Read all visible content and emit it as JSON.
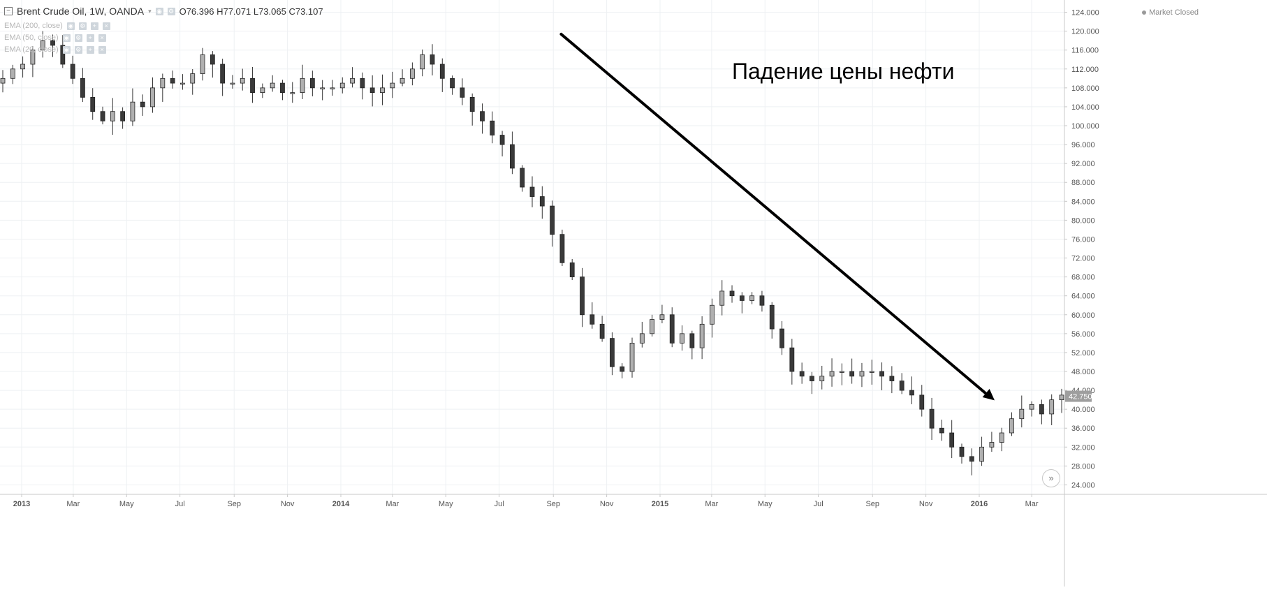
{
  "legend": {
    "symbol": "Brent Crude Oil, 1W, OANDA",
    "ohlc": "O76.396 H77.071 L73.065 C73.107",
    "indicators": [
      "EMA (200, close)",
      "EMA (50, close)",
      "EMA (20, close)"
    ]
  },
  "status": "Market Closed",
  "annotation": "Падение цены нефти",
  "scroll_icon": "double-chevron-right-icon",
  "colors": {
    "up": "#b0b0b0",
    "down": "#3a3a3a",
    "grid": "#eef0f3",
    "arrow": "#000000"
  },
  "chart_data": {
    "type": "candlestick",
    "title": "Brent Crude Oil, 1W, OANDA",
    "ylim": [
      22,
      126
    ],
    "y_ticks": [
      "24.000",
      "28.000",
      "32.000",
      "36.000",
      "40.000",
      "44.000",
      "48.000",
      "52.000",
      "56.000",
      "60.000",
      "64.000",
      "68.000",
      "72.000",
      "76.000",
      "80.000",
      "84.000",
      "88.000",
      "92.000",
      "96.000",
      "100.000",
      "104.000",
      "108.000",
      "112.000",
      "116.000",
      "120.000",
      "124.000"
    ],
    "last_price": "42.750",
    "x_labels": [
      {
        "date": "2013-01",
        "label": "2013"
      },
      {
        "date": "2013-03",
        "label": "Mar"
      },
      {
        "date": "2013-05",
        "label": "May"
      },
      {
        "date": "2013-07",
        "label": "Jul"
      },
      {
        "date": "2013-09",
        "label": "Sep"
      },
      {
        "date": "2013-11",
        "label": "Nov"
      },
      {
        "date": "2014-01",
        "label": "2014"
      },
      {
        "date": "2014-03",
        "label": "Mar"
      },
      {
        "date": "2014-05",
        "label": "May"
      },
      {
        "date": "2014-07",
        "label": "Jul"
      },
      {
        "date": "2014-09",
        "label": "Sep"
      },
      {
        "date": "2014-11",
        "label": "Nov"
      },
      {
        "date": "2015-01",
        "label": "2015"
      },
      {
        "date": "2015-03",
        "label": "Mar"
      },
      {
        "date": "2015-05",
        "label": "May"
      },
      {
        "date": "2015-07",
        "label": "Jul"
      },
      {
        "date": "2015-09",
        "label": "Sep"
      },
      {
        "date": "2015-11",
        "label": "Nov"
      },
      {
        "date": "2016-01",
        "label": "2016"
      },
      {
        "date": "2016-03",
        "label": "Mar"
      }
    ],
    "close_path": [
      110,
      112,
      113,
      116,
      118,
      117,
      113,
      110,
      106,
      103,
      101,
      103,
      101,
      105,
      104,
      108,
      110,
      109,
      109,
      111,
      115,
      113,
      109,
      109,
      110,
      107,
      108,
      109,
      107,
      107,
      110,
      108,
      108,
      108,
      109,
      110,
      108,
      107,
      108,
      109,
      110,
      112,
      115,
      113,
      110,
      108,
      106,
      103,
      101,
      98,
      96,
      91,
      87,
      85,
      83,
      77,
      71,
      68,
      60,
      58,
      55,
      49,
      48,
      54,
      56,
      59,
      60,
      54,
      56,
      53,
      58,
      62,
      65,
      64,
      63,
      64,
      62,
      57,
      53,
      48,
      47,
      46,
      47,
      48,
      48,
      47,
      48,
      48,
      47,
      46,
      44,
      43,
      40,
      36,
      35,
      32,
      30,
      29,
      32,
      33,
      35,
      38,
      40,
      41,
      39,
      42,
      43
    ],
    "trend_arrow": {
      "from": {
        "date": "2014-08",
        "value": 117
      },
      "to": {
        "date": "2016-01",
        "value": 41
      }
    }
  }
}
